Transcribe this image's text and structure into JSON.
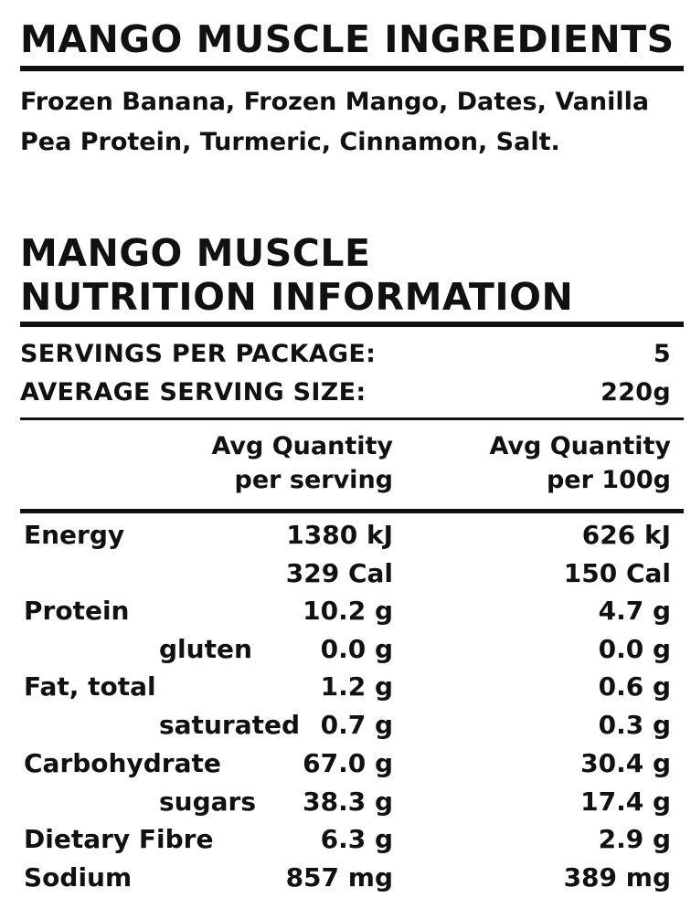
{
  "ingredients": {
    "heading": "MANGO MUSCLE INGREDIENTS",
    "line1": "Frozen Banana, Frozen Mango, Dates, Vanilla",
    "line2": "Pea Protein, Turmeric, Cinnamon, Salt."
  },
  "nutrition": {
    "heading_line1": "MANGO MUSCLE",
    "heading_line2": "NUTRITION INFORMATION",
    "servings_label": "SERVINGS PER PACKAGE:",
    "servings_value": "5",
    "serving_size_label": "AVERAGE SERVING SIZE:",
    "serving_size_value": "220g",
    "col1_line1": "Avg Quantity",
    "col1_line2": "per serving",
    "col2_line1": "Avg Quantity",
    "col2_line2": "per 100g",
    "rows": [
      {
        "label": "Energy",
        "per_serving": "1380 kJ",
        "per_100g": "626 kJ"
      },
      {
        "label": "",
        "per_serving": "329 Cal",
        "per_100g": "150 Cal"
      },
      {
        "label": "Protein",
        "per_serving": "10.2 g",
        "per_100g": "4.7 g"
      },
      {
        "label": "gluten",
        "per_serving": "0.0 g",
        "per_100g": "0.0 g"
      },
      {
        "label": "Fat, total",
        "per_serving": "1.2 g",
        "per_100g": "0.6 g"
      },
      {
        "label": "saturated",
        "per_serving": "0.7 g",
        "per_100g": "0.3 g"
      },
      {
        "label": "Carbohydrate",
        "per_serving": "67.0 g",
        "per_100g": "30.4 g"
      },
      {
        "label": "sugars",
        "per_serving": "38.3 g",
        "per_100g": "17.4 g"
      },
      {
        "label": "Dietary Fibre",
        "per_serving": "6.3 g",
        "per_100g": "2.9 g"
      },
      {
        "label": "Sodium",
        "per_serving": "857 mg",
        "per_100g": "389 mg"
      }
    ]
  }
}
